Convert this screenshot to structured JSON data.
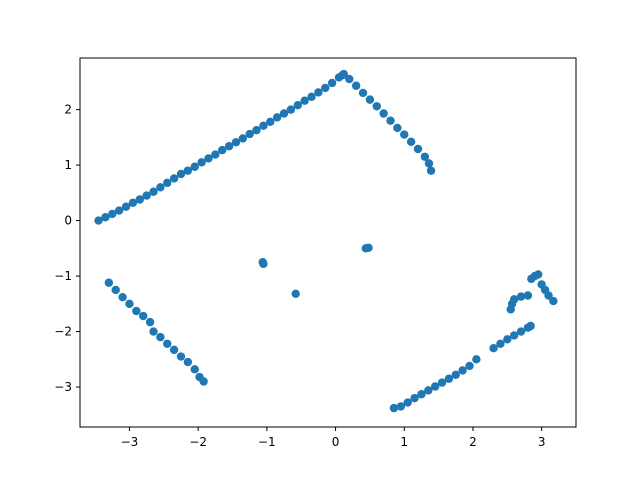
{
  "chart_data": {
    "type": "scatter",
    "title": "",
    "xlabel": "",
    "ylabel": "",
    "xlim": [
      -3.72,
      3.5
    ],
    "ylim": [
      -3.72,
      2.93
    ],
    "xticks": [
      -3,
      -2,
      -1,
      0,
      1,
      2,
      3
    ],
    "yticks": [
      -3,
      -2,
      -1,
      0,
      1,
      2
    ],
    "xtick_labels": [
      "−3",
      "−2",
      "−1",
      "0",
      "1",
      "2",
      "3"
    ],
    "ytick_labels": [
      "−3",
      "−2",
      "−1",
      "0",
      "1",
      "2"
    ],
    "grid": false,
    "legend": false,
    "marker_color": "#1f77b4",
    "series": [
      {
        "points": [
          [
            -3.45,
            0.0
          ],
          [
            -3.35,
            0.06
          ],
          [
            -3.25,
            0.12
          ],
          [
            -3.15,
            0.18
          ],
          [
            -3.05,
            0.25
          ],
          [
            -2.95,
            0.32
          ],
          [
            -2.85,
            0.38
          ],
          [
            -2.75,
            0.45
          ],
          [
            -2.65,
            0.52
          ],
          [
            -2.55,
            0.6
          ],
          [
            -2.45,
            0.68
          ],
          [
            -2.35,
            0.76
          ],
          [
            -2.25,
            0.84
          ],
          [
            -2.15,
            0.9
          ],
          [
            -2.05,
            0.97
          ],
          [
            -1.95,
            1.05
          ],
          [
            -1.85,
            1.12
          ],
          [
            -1.75,
            1.19
          ],
          [
            -1.65,
            1.27
          ],
          [
            -1.55,
            1.34
          ],
          [
            -1.45,
            1.41
          ],
          [
            -1.35,
            1.48
          ],
          [
            -1.25,
            1.56
          ],
          [
            -1.15,
            1.63
          ],
          [
            -1.05,
            1.71
          ],
          [
            -0.95,
            1.78
          ],
          [
            -0.85,
            1.86
          ],
          [
            -0.75,
            1.93
          ],
          [
            -0.65,
            2.0
          ],
          [
            -0.55,
            2.08
          ],
          [
            -0.45,
            2.16
          ],
          [
            -0.35,
            2.23
          ],
          [
            -0.25,
            2.31
          ],
          [
            -0.15,
            2.39
          ],
          [
            -0.05,
            2.48
          ],
          [
            0.05,
            2.58
          ],
          [
            0.1,
            2.62
          ],
          [
            0.12,
            2.64
          ],
          [
            0.2,
            2.55
          ],
          [
            0.3,
            2.43
          ],
          [
            0.4,
            2.3
          ],
          [
            0.5,
            2.18
          ],
          [
            0.6,
            2.06
          ],
          [
            0.7,
            1.93
          ],
          [
            0.8,
            1.8
          ],
          [
            0.9,
            1.67
          ],
          [
            1.0,
            1.55
          ],
          [
            1.1,
            1.42
          ],
          [
            1.2,
            1.29
          ],
          [
            1.3,
            1.15
          ],
          [
            1.36,
            1.03
          ],
          [
            1.39,
            0.9
          ],
          [
            -3.3,
            -1.12
          ],
          [
            -3.2,
            -1.25
          ],
          [
            -3.1,
            -1.38
          ],
          [
            -3.0,
            -1.5
          ],
          [
            -2.9,
            -1.63
          ],
          [
            -2.8,
            -1.72
          ],
          [
            -2.7,
            -1.83
          ],
          [
            -2.65,
            -2.0
          ],
          [
            -2.55,
            -2.1
          ],
          [
            -2.45,
            -2.22
          ],
          [
            -2.35,
            -2.33
          ],
          [
            -2.25,
            -2.45
          ],
          [
            -2.15,
            -2.55
          ],
          [
            -2.05,
            -2.68
          ],
          [
            -1.98,
            -2.82
          ],
          [
            -1.92,
            -2.9
          ],
          [
            -1.06,
            -0.75
          ],
          [
            -1.05,
            -0.78
          ],
          [
            -0.58,
            -1.32
          ],
          [
            0.44,
            -0.5
          ],
          [
            0.48,
            -0.49
          ],
          [
            0.85,
            -3.38
          ],
          [
            0.95,
            -3.35
          ],
          [
            1.05,
            -3.28
          ],
          [
            1.15,
            -3.2
          ],
          [
            1.25,
            -3.13
          ],
          [
            1.35,
            -3.06
          ],
          [
            1.45,
            -2.99
          ],
          [
            1.55,
            -2.92
          ],
          [
            1.65,
            -2.85
          ],
          [
            1.75,
            -2.78
          ],
          [
            1.85,
            -2.7
          ],
          [
            1.95,
            -2.62
          ],
          [
            2.05,
            -2.5
          ],
          [
            2.3,
            -2.3
          ],
          [
            2.4,
            -2.22
          ],
          [
            2.5,
            -2.14
          ],
          [
            2.6,
            -2.07
          ],
          [
            2.7,
            -2.0
          ],
          [
            2.8,
            -1.93
          ],
          [
            2.84,
            -1.9
          ],
          [
            2.55,
            -1.6
          ],
          [
            2.57,
            -1.5
          ],
          [
            2.6,
            -1.42
          ],
          [
            2.7,
            -1.37
          ],
          [
            2.8,
            -1.35
          ],
          [
            2.85,
            -1.05
          ],
          [
            2.9,
            -1.0
          ],
          [
            2.95,
            -0.97
          ],
          [
            3.0,
            -1.15
          ],
          [
            3.05,
            -1.25
          ],
          [
            3.1,
            -1.35
          ],
          [
            3.17,
            -1.45
          ]
        ]
      }
    ]
  }
}
